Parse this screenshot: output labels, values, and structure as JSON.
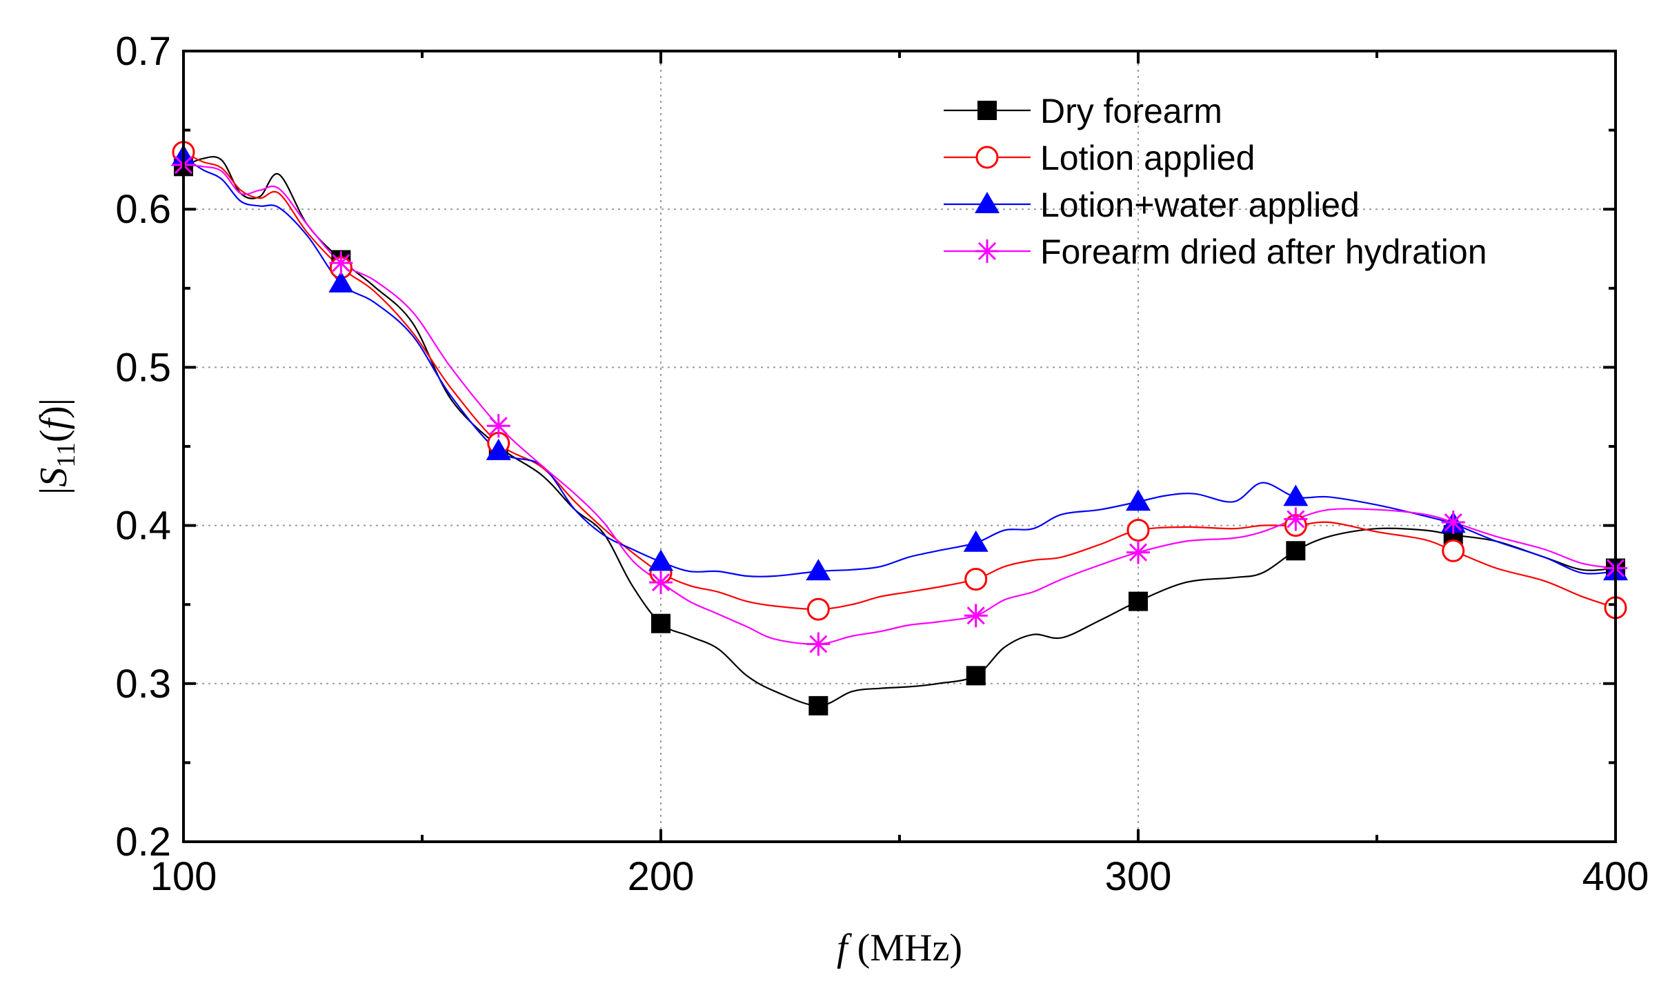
{
  "chart_data": {
    "type": "line",
    "title": "",
    "xlabel": {
      "symbol": "f",
      "unit": "(MHz)"
    },
    "ylabel": {
      "open": "|",
      "symbol": "S",
      "subscript": "11",
      "arg_open": "(",
      "arg": "f",
      "arg_close": ")",
      "close": "|"
    },
    "xlim": [
      100,
      400
    ],
    "ylim": [
      0.2,
      0.7
    ],
    "x_ticks": [
      100,
      200,
      300,
      400
    ],
    "x_tick_labels": [
      "100",
      "200",
      "300",
      "400"
    ],
    "y_ticks": [
      0.2,
      0.3,
      0.4,
      0.5,
      0.6,
      0.7
    ],
    "y_tick_labels": [
      "0.2",
      "0.3",
      "0.4",
      "0.5",
      "0.6",
      "0.7"
    ],
    "x_minor_step": 50,
    "y_minor_step": 0.05,
    "grid": true,
    "legend_position": "top-right",
    "marker_x": [
      100,
      133,
      166,
      200,
      233,
      266,
      300,
      333,
      366,
      400
    ],
    "series": [
      {
        "name": "Dry forearm",
        "color": "#000000",
        "marker": "filled-square",
        "x": [
          100,
          104,
          108,
          112,
          116,
          120,
          126,
          133,
          140,
          148,
          156,
          166,
          175,
          182,
          188,
          194,
          200,
          206,
          212,
          218,
          224,
          233,
          240,
          246,
          252,
          258,
          266,
          272,
          278,
          284,
          292,
          300,
          310,
          320,
          326,
          333,
          340,
          350,
          360,
          366,
          375,
          385,
          393,
          400
        ],
        "y": [
          0.627,
          0.632,
          0.631,
          0.61,
          0.608,
          0.622,
          0.59,
          0.568,
          0.551,
          0.528,
          0.48,
          0.45,
          0.432,
          0.41,
          0.395,
          0.362,
          0.338,
          0.33,
          0.322,
          0.305,
          0.295,
          0.286,
          0.295,
          0.297,
          0.298,
          0.3,
          0.305,
          0.323,
          0.331,
          0.329,
          0.34,
          0.352,
          0.364,
          0.367,
          0.37,
          0.384,
          0.393,
          0.398,
          0.397,
          0.394,
          0.39,
          0.38,
          0.372,
          0.373
        ]
      },
      {
        "name": "Lotion applied",
        "color": "#ff0000",
        "marker": "open-circle",
        "x": [
          100,
          104,
          108,
          112,
          116,
          120,
          126,
          133,
          140,
          148,
          156,
          166,
          175,
          182,
          188,
          194,
          200,
          206,
          212,
          218,
          224,
          233,
          240,
          246,
          252,
          258,
          266,
          272,
          278,
          284,
          292,
          300,
          310,
          320,
          326,
          333,
          340,
          350,
          360,
          366,
          375,
          385,
          393,
          400
        ],
        "y": [
          0.636,
          0.63,
          0.626,
          0.612,
          0.607,
          0.61,
          0.585,
          0.563,
          0.548,
          0.522,
          0.487,
          0.452,
          0.437,
          0.415,
          0.398,
          0.383,
          0.37,
          0.362,
          0.358,
          0.352,
          0.349,
          0.347,
          0.35,
          0.355,
          0.358,
          0.361,
          0.366,
          0.374,
          0.378,
          0.38,
          0.388,
          0.397,
          0.399,
          0.398,
          0.4,
          0.4,
          0.402,
          0.396,
          0.391,
          0.384,
          0.373,
          0.365,
          0.355,
          0.348
        ]
      },
      {
        "name": "Lotion+water applied",
        "color": "#0000ff",
        "marker": "filled-triangle",
        "x": [
          100,
          104,
          108,
          112,
          116,
          120,
          126,
          133,
          140,
          148,
          156,
          166,
          175,
          182,
          188,
          194,
          200,
          206,
          212,
          218,
          224,
          233,
          240,
          246,
          252,
          258,
          266,
          272,
          278,
          284,
          292,
          300,
          306,
          312,
          320,
          326,
          333,
          340,
          350,
          360,
          366,
          375,
          385,
          393,
          400
        ],
        "y": [
          0.633,
          0.625,
          0.619,
          0.605,
          0.602,
          0.601,
          0.583,
          0.553,
          0.541,
          0.52,
          0.482,
          0.447,
          0.438,
          0.41,
          0.394,
          0.385,
          0.377,
          0.371,
          0.371,
          0.368,
          0.368,
          0.371,
          0.372,
          0.374,
          0.38,
          0.384,
          0.389,
          0.397,
          0.398,
          0.407,
          0.41,
          0.415,
          0.419,
          0.42,
          0.415,
          0.427,
          0.418,
          0.418,
          0.413,
          0.406,
          0.401,
          0.39,
          0.38,
          0.37,
          0.371
        ]
      },
      {
        "name": "Forearm dried after hydration",
        "color": "#ff00ff",
        "marker": "asterisk",
        "x": [
          100,
          104,
          108,
          112,
          116,
          120,
          126,
          133,
          140,
          148,
          156,
          166,
          175,
          182,
          188,
          194,
          200,
          206,
          212,
          218,
          224,
          233,
          240,
          246,
          252,
          258,
          266,
          272,
          278,
          284,
          292,
          300,
          310,
          320,
          326,
          333,
          340,
          350,
          360,
          366,
          375,
          385,
          393,
          400
        ],
        "y": [
          0.628,
          0.627,
          0.624,
          0.61,
          0.612,
          0.613,
          0.59,
          0.566,
          0.555,
          0.535,
          0.5,
          0.463,
          0.438,
          0.42,
          0.402,
          0.378,
          0.364,
          0.352,
          0.344,
          0.336,
          0.328,
          0.325,
          0.33,
          0.333,
          0.337,
          0.339,
          0.343,
          0.353,
          0.358,
          0.366,
          0.375,
          0.383,
          0.39,
          0.392,
          0.396,
          0.404,
          0.41,
          0.41,
          0.407,
          0.402,
          0.393,
          0.385,
          0.376,
          0.373
        ]
      }
    ]
  }
}
